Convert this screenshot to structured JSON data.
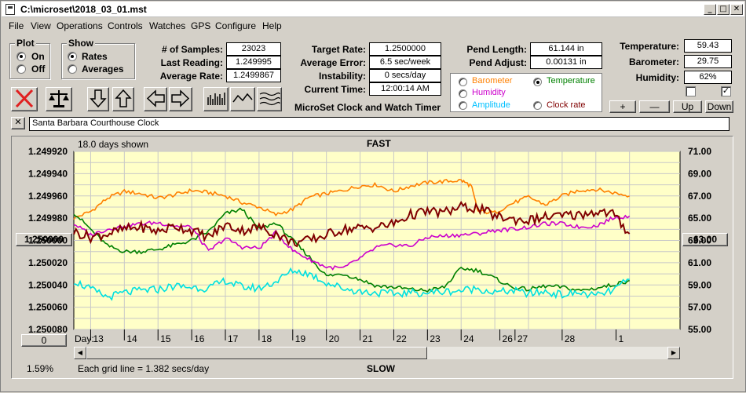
{
  "window": {
    "title": "C:\\microset\\2018_03_01.mst"
  },
  "menu": [
    "File",
    "View",
    "Operations",
    "Controls",
    "Watches",
    "GPS",
    "Configure",
    "Help"
  ],
  "plot_group": {
    "title": "Plot",
    "options": [
      "On",
      "Off"
    ],
    "selected": "On"
  },
  "show_group": {
    "title": "Show",
    "options": [
      "Rates",
      "Averages"
    ],
    "selected": "Rates"
  },
  "stats": {
    "samples_label": "# of Samples:",
    "samples": "23023",
    "last_label": "Last Reading:",
    "last": "1.249995",
    "avg_label": "Average Rate:",
    "avg": "1.2499867"
  },
  "timing": {
    "target_label": "Target Rate:",
    "target": "1.2500000",
    "error_label": "Average Error:",
    "error": "6.5 sec/week",
    "instab_label": "Instability:",
    "instab": "0 secs/day",
    "time_label": "Current Time:",
    "time": "12:00:14 AM"
  },
  "pendulum": {
    "length_label": "Pend Length:",
    "length": "61.144 in",
    "adjust_label": "Pend Adjust:",
    "adjust": "0.00131 in"
  },
  "environment": {
    "temp_label": "Temperature:",
    "temp": "59.43",
    "baro_label": "Barometer:",
    "baro": "29.75",
    "hum_label": "Humidity:",
    "hum": "62%",
    "checkbox1": false,
    "checkbox2": true
  },
  "series_select": [
    {
      "label": "Barometer",
      "color": "#ff8000",
      "selected": false
    },
    {
      "label": "Temperature",
      "color": "#008000",
      "selected": true
    },
    {
      "label": "Humidity",
      "color": "#cc00cc",
      "selected": false
    },
    {
      "label": "Clock rate",
      "color": "#800000",
      "selected": false
    },
    {
      "label": "Amplitude",
      "color": "#00c0ff",
      "selected": false
    }
  ],
  "footer_caption": "MicroSet Clock and Watch Timer",
  "adjust_buttons": [
    "+",
    "—",
    "Up",
    "Down"
  ],
  "clock_name": "Santa Barbara Courthouse Clock",
  "chart_labels": {
    "days_shown": "18.0 days shown",
    "fast": "FAST",
    "slow": "SLOW",
    "grid_note": "Each grid line = 1.382 secs/day",
    "left_button": "1.250000",
    "right_button": "63.00",
    "zero_button": "0",
    "percent": "1.59%",
    "day_label": "Day:"
  },
  "chart_data": {
    "type": "line",
    "x_label": "Day:",
    "x_ticks": [
      "13",
      "14",
      "15",
      "16",
      "17",
      "18",
      "19",
      "20",
      "21",
      "22",
      "23",
      "24",
      "26",
      "27",
      "28",
      "1"
    ],
    "y_left": {
      "ticks": [
        "1.249920",
        "1.249940",
        "1.249960",
        "1.249980",
        "1.250000",
        "1.250020",
        "1.250040",
        "1.250060",
        "1.250080"
      ],
      "range": [
        1.24992,
        1.25008
      ],
      "inverted": true
    },
    "y_right": {
      "ticks": [
        "71.00",
        "69.00",
        "67.00",
        "65.00",
        "63.00",
        "61.00",
        "59.00",
        "57.00",
        "55.00"
      ],
      "range": [
        55,
        71
      ]
    },
    "x_range": [
      12.5,
      30.5
    ],
    "series": [
      {
        "name": "Barometer",
        "color": "#ff8000",
        "x": [
          12.5,
          13,
          13.5,
          14,
          14.5,
          15,
          15.5,
          16,
          16.5,
          17,
          17.5,
          18,
          18.5,
          19,
          19.5,
          20,
          20.5,
          21,
          21.5,
          22,
          22.5,
          23,
          23.5,
          24,
          24.3,
          24.5,
          25,
          25.5,
          26,
          26.5,
          27,
          27.5,
          28,
          28.5,
          29
        ],
        "y": [
          65.0,
          65.6,
          66.8,
          67.4,
          67.2,
          66.8,
          67.1,
          67.5,
          67.3,
          67.0,
          66.4,
          66.0,
          65.3,
          65.8,
          66.9,
          67.2,
          67.5,
          67.9,
          68.0,
          67.4,
          67.9,
          68.2,
          68.3,
          68.4,
          67.9,
          65.6,
          65.5,
          66.3,
          66.9,
          66.2,
          67.0,
          67.5,
          67.6,
          67.3,
          67.0
        ]
      },
      {
        "name": "Temperature",
        "color": "#008000",
        "x": [
          12.5,
          13,
          13.5,
          14,
          14.5,
          15,
          15.5,
          16,
          16.5,
          17,
          17.5,
          18,
          18.5,
          19,
          19.5,
          20,
          20.5,
          21,
          21.5,
          22,
          22.5,
          23,
          23.5,
          24,
          24.5,
          25,
          25.5,
          26,
          26.5,
          27,
          27.5,
          28,
          28.5,
          29
        ],
        "y": [
          65.5,
          64.0,
          62.5,
          62.0,
          62.0,
          62.2,
          62.6,
          63.0,
          63.8,
          65.4,
          65.8,
          64.0,
          64.6,
          63.0,
          61.5,
          59.8,
          60.0,
          59.5,
          58.9,
          58.8,
          58.6,
          58.5,
          58.8,
          60.5,
          60.3,
          59.6,
          58.8,
          58.6,
          58.9,
          58.8,
          58.5,
          58.7,
          59.0,
          59.4
        ]
      },
      {
        "name": "Humidity",
        "color": "#cc00cc",
        "x": [
          12.5,
          13,
          13.5,
          14,
          14.5,
          15,
          15.5,
          16,
          16.5,
          17,
          17.5,
          18,
          18.5,
          19,
          19.5,
          20,
          20.5,
          21,
          21.5,
          22,
          22.5,
          23,
          23.5,
          24,
          24.5,
          25,
          25.5,
          26,
          26.5,
          27,
          27.5,
          28,
          28.5,
          29
        ],
        "y": [
          64.5,
          63.5,
          64.0,
          64.3,
          64.5,
          64.6,
          64.3,
          64.2,
          62.0,
          63.2,
          62.4,
          62.3,
          63.7,
          62.1,
          61.3,
          60.6,
          60.5,
          61.4,
          62.4,
          62.6,
          62.5,
          63.3,
          63.4,
          63.5,
          63.6,
          63.9,
          64.0,
          64.2,
          64.5,
          64.5,
          64.2,
          64.3,
          65.0,
          65.2
        ]
      },
      {
        "name": "Clock rate",
        "color": "#800000",
        "x": [
          12.5,
          13,
          13.5,
          14,
          14.5,
          15,
          15.5,
          16,
          16.5,
          17,
          17.5,
          18,
          18.5,
          19,
          19.5,
          20,
          20.5,
          21,
          21.5,
          22,
          22.5,
          23,
          23.5,
          24,
          24.5,
          25,
          25.5,
          26,
          26.5,
          27,
          27.5,
          28,
          28.5,
          29
        ],
        "y": [
          63.8,
          63.3,
          63.6,
          64.0,
          64.2,
          63.8,
          64.3,
          63.9,
          63.3,
          64.4,
          63.9,
          64.2,
          63.6,
          62.8,
          63.0,
          63.5,
          64.0,
          64.1,
          64.2,
          64.5,
          65.3,
          65.6,
          65.5,
          66.0,
          65.9,
          65.2,
          64.9,
          64.8,
          65.1,
          65.2,
          65.3,
          65.6,
          65.4,
          63.6
        ]
      },
      {
        "name": "Amplitude",
        "color": "#00e0e0",
        "x": [
          12.5,
          13,
          13.5,
          14,
          14.5,
          15,
          15.5,
          16,
          16.5,
          17,
          17.5,
          18,
          18.5,
          19,
          19.5,
          20,
          20.5,
          21,
          21.5,
          22,
          22.5,
          23,
          23.5,
          24,
          24.5,
          25,
          25.5,
          26,
          26.5,
          27,
          27.5,
          28,
          28.5,
          29
        ],
        "y": [
          59.4,
          58.6,
          57.9,
          58.3,
          58.5,
          58.6,
          58.9,
          58.8,
          58.7,
          59.4,
          58.8,
          58.7,
          59.3,
          60.3,
          60.0,
          59.2,
          58.7,
          58.4,
          58.3,
          58.2,
          58.3,
          58.3,
          58.4,
          58.5,
          58.7,
          58.3,
          58.5,
          58.2,
          58.4,
          58.1,
          58.3,
          58.0,
          58.5,
          59.5
        ]
      }
    ]
  }
}
